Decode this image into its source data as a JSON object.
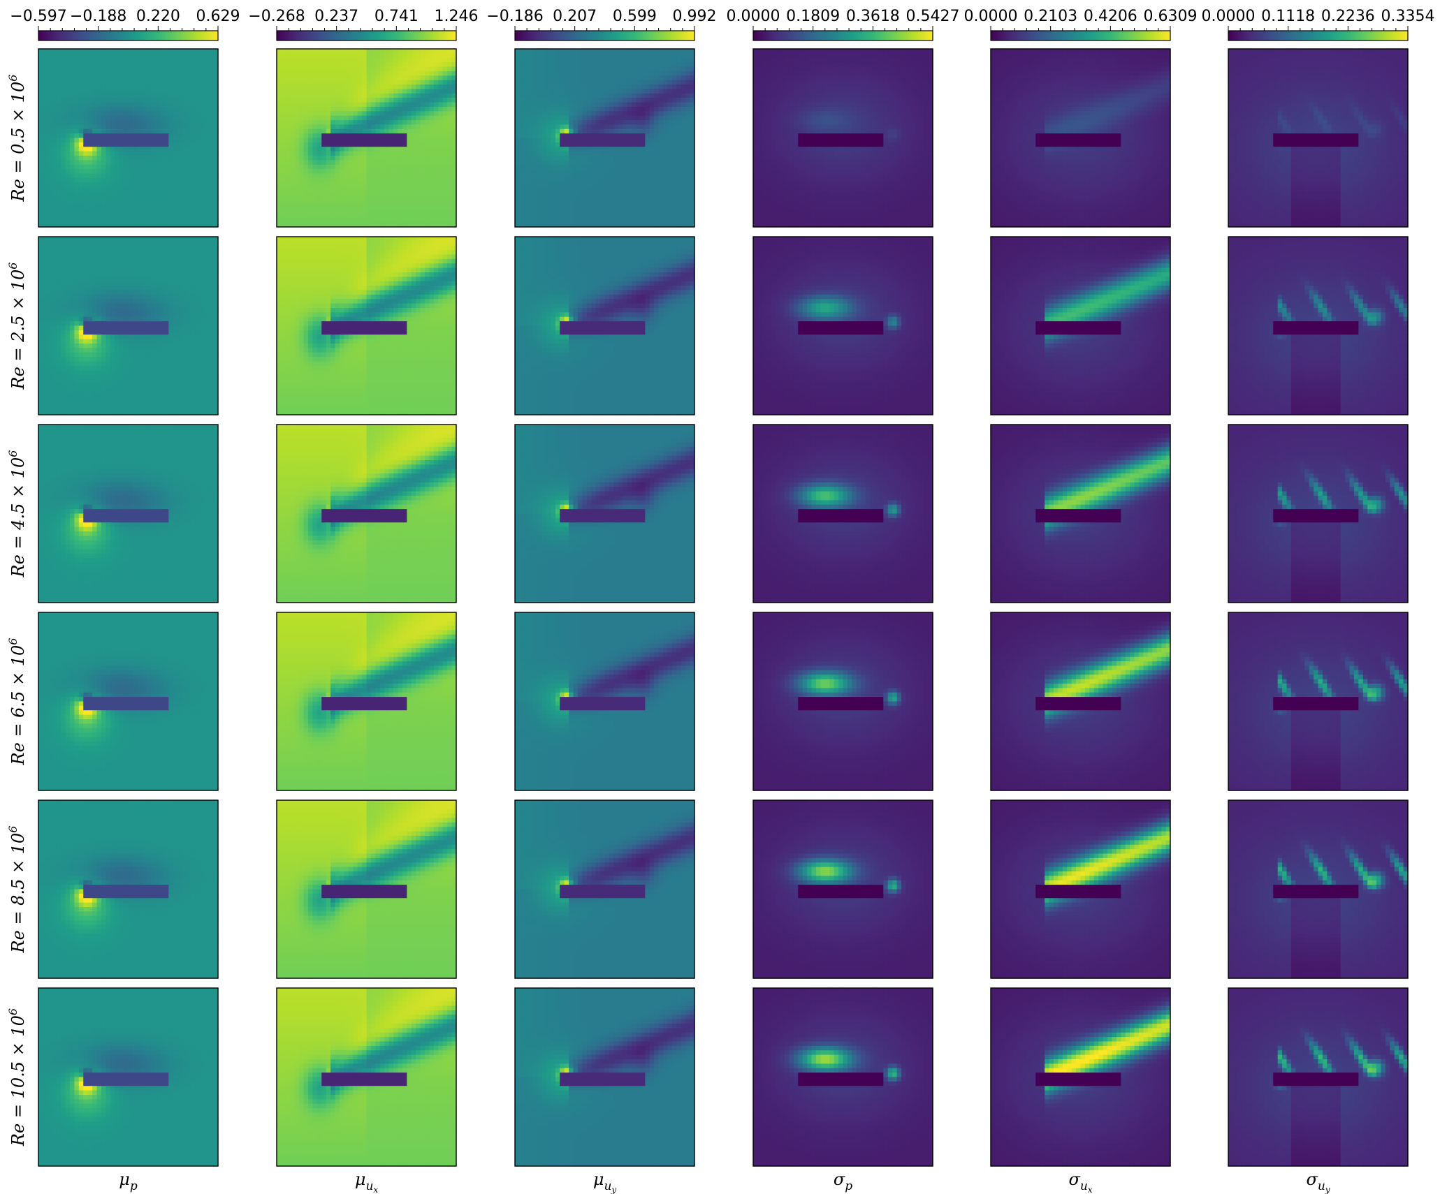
{
  "chart_data": {
    "type": "heatmap",
    "grid": false,
    "colormap": "viridis",
    "colormap_stops": [
      "#440154",
      "#482878",
      "#3e4989",
      "#31688e",
      "#26828e",
      "#1f9e89",
      "#35b779",
      "#6ece58",
      "#b5de2b",
      "#fde725"
    ],
    "rows": [
      {
        "label_main": "Re = 0.5 × 10",
        "label_exp": "6"
      },
      {
        "label_main": "Re = 2.5 × 10",
        "label_exp": "6"
      },
      {
        "label_main": "Re = 4.5 × 10",
        "label_exp": "6"
      },
      {
        "label_main": "Re = 6.5 × 10",
        "label_exp": "6"
      },
      {
        "label_main": "Re = 8.5 × 10",
        "label_exp": "6"
      },
      {
        "label_main": "Re = 10.5 × 10",
        "label_exp": "6"
      }
    ],
    "columns": [
      {
        "label_base": "μ",
        "label_sub": "p",
        "label_subsub": "",
        "field": "mu_p",
        "colorbar_ticks": [
          "−0.597",
          "−0.188",
          "0.220",
          "0.629"
        ],
        "range": [
          -0.597,
          0.629
        ]
      },
      {
        "label_base": "μ",
        "label_sub": "u",
        "label_subsub": "x",
        "field": "mu_ux",
        "colorbar_ticks": [
          "−0.268",
          "0.237",
          "0.741",
          "1.246"
        ],
        "range": [
          -0.268,
          1.246
        ]
      },
      {
        "label_base": "μ",
        "label_sub": "u",
        "label_subsub": "y",
        "field": "mu_uy",
        "colorbar_ticks": [
          "−0.186",
          "0.207",
          "0.599",
          "0.992"
        ],
        "range": [
          -0.186,
          0.992
        ]
      },
      {
        "label_base": "σ",
        "label_sub": "p",
        "label_subsub": "",
        "field": "sigma_p",
        "colorbar_ticks": [
          "0.0000",
          "0.1809",
          "0.3618",
          "0.5427"
        ],
        "range": [
          0.0,
          0.5427
        ]
      },
      {
        "label_base": "σ",
        "label_sub": "u",
        "label_subsub": "x",
        "field": "sigma_ux",
        "colorbar_ticks": [
          "0.0000",
          "0.2103",
          "0.4206",
          "0.6309"
        ],
        "range": [
          0.0,
          0.6309
        ]
      },
      {
        "label_base": "σ",
        "label_sub": "u",
        "label_subsub": "y",
        "field": "sigma_uy",
        "colorbar_ticks": [
          "0.0000",
          "0.1118",
          "0.2236",
          "0.3354"
        ],
        "range": [
          0.0,
          0.3354
        ]
      }
    ],
    "uncertainty_intensity": [
      0.12,
      0.62,
      0.78,
      0.88,
      0.95,
      1.0
    ]
  }
}
